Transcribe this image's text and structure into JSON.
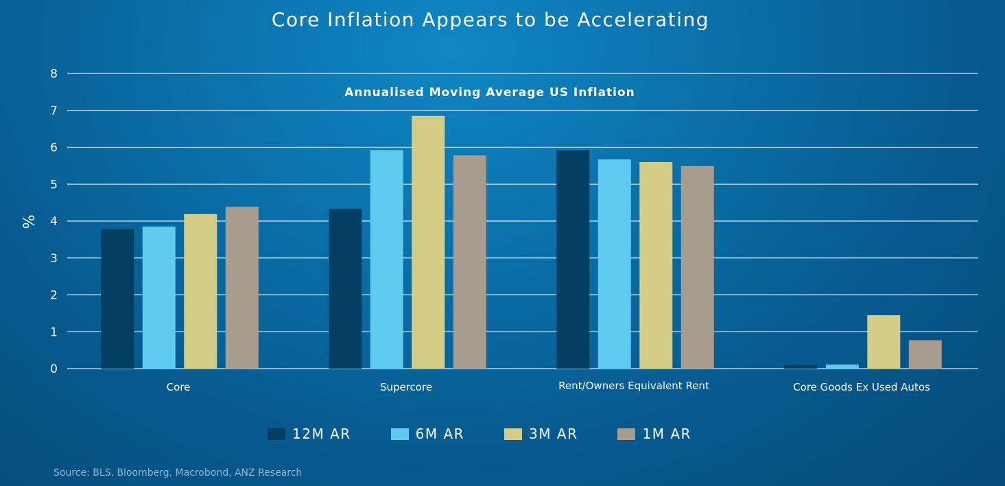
{
  "page": {
    "title": "Core Inflation Appears to be Accelerating",
    "source": "Source: BLS, Bloomberg, Macrobond, ANZ Research"
  },
  "chart_data": {
    "type": "bar",
    "title": "Annualised Moving Average US Inflation",
    "xlabel": "",
    "ylabel": "%",
    "ylim": [
      0,
      8
    ],
    "yticks": [
      "0",
      "1",
      "2",
      "3",
      "4",
      "5",
      "6",
      "7",
      "8"
    ],
    "grid": true,
    "legend_position": "bottom",
    "categories": [
      "Core",
      "Supercore",
      "Rent/Owners Equivalent Rent",
      "Core Goods Ex Used Autos"
    ],
    "series": [
      {
        "name": "12M AR",
        "color": "#033f63",
        "values": [
          3.78,
          4.33,
          5.92,
          0.1
        ]
      },
      {
        "name": "6M AR",
        "color": "#5ecaf0",
        "values": [
          3.85,
          5.92,
          5.67,
          0.11
        ]
      },
      {
        "name": "3M AR",
        "color": "#d3cc86",
        "values": [
          4.19,
          6.85,
          5.6,
          1.45
        ]
      },
      {
        "name": "1M AR",
        "color": "#a89c8f",
        "values": [
          4.39,
          5.78,
          5.49,
          0.77
        ]
      }
    ]
  }
}
